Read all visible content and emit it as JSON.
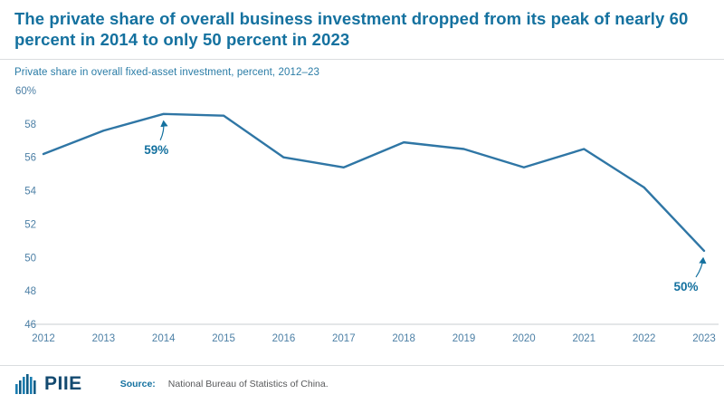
{
  "header": {
    "title": "The private share of overall business investment dropped from its peak of nearly 60 percent in 2014 to only 50 percent in 2023",
    "subtitle": "Private share in overall fixed-asset investment, percent, 2012–23"
  },
  "chart_data": {
    "type": "line",
    "title": "The private share of overall business investment dropped from its peak of nearly 60 percent in 2014 to only 50 percent in 2023",
    "subtitle": "Private share in overall fixed-asset investment, percent, 2012–23",
    "x": [
      2012,
      2013,
      2014,
      2015,
      2016,
      2017,
      2018,
      2019,
      2020,
      2021,
      2022,
      2023
    ],
    "series": [
      {
        "name": "Private share",
        "values": [
          56.2,
          57.6,
          58.6,
          58.5,
          56.0,
          55.4,
          56.9,
          56.5,
          55.4,
          56.5,
          54.2,
          50.4
        ]
      }
    ],
    "xlabel": "",
    "ylabel": "",
    "ylim": [
      46,
      60
    ],
    "yticks": [
      46,
      48,
      50,
      52,
      54,
      56,
      58,
      60
    ],
    "ytick_labels": [
      "46",
      "48",
      "50",
      "52",
      "54",
      "56",
      "58",
      "60%"
    ],
    "grid": false,
    "legend": "none",
    "annotations": [
      {
        "x": 2014,
        "y": 58.6,
        "label": "59%"
      },
      {
        "x": 2023,
        "y": 50.4,
        "label": "50%"
      }
    ]
  },
  "footer": {
    "logo_text": "PIIE",
    "source_label": "Source:",
    "source_text": "National Bureau of Statistics of China."
  },
  "colors": {
    "title": "#14719f",
    "line": "#2f76a5",
    "axis_text": "#4d80a6",
    "axis_line": "#c9cdd0",
    "annotation": "#14719f",
    "divider": "#dadddf",
    "logo_light": "#1b7db0",
    "logo_dark": "#0f5c86"
  }
}
